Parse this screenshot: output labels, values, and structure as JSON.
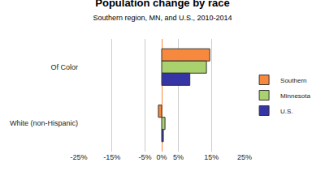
{
  "chart_data": {
    "type": "bar",
    "orientation": "horizontal",
    "title": "Population change by race",
    "subtitle": "Southern region, MN, and U.S., 2010-2014",
    "categories": [
      "Of Color",
      "White (non-Hispanic)"
    ],
    "series": [
      {
        "name": "Southern",
        "color": "#f7893f",
        "values": [
          14.5,
          -1
        ]
      },
      {
        "name": "Minnesota",
        "color": "#a9d16e",
        "values": [
          13.5,
          1
        ]
      },
      {
        "name": "U.S.",
        "color": "#3535a6",
        "values": [
          8.5,
          0.5
        ]
      }
    ],
    "xlim": [
      -25,
      25
    ],
    "xticks": [
      {
        "value": -25,
        "label": "-25%"
      },
      {
        "value": -15,
        "label": "-15%"
      },
      {
        "value": -5,
        "label": "-5%"
      },
      {
        "value": 0,
        "label": "0%"
      },
      {
        "value": 5,
        "label": "5%"
      },
      {
        "value": 15,
        "label": "15%"
      },
      {
        "value": 25,
        "label": "25%"
      }
    ],
    "grid": true,
    "legend": "right"
  }
}
